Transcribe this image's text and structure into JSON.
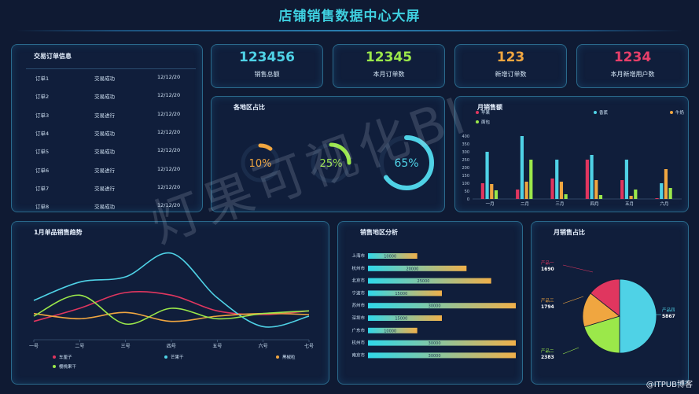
{
  "header": {
    "title": "店铺销售数据中心大屏"
  },
  "orders": {
    "title": "交易订单信息",
    "rows": [
      {
        "name": "订单1",
        "status": "交易成功",
        "date": "12/12/20"
      },
      {
        "name": "订单2",
        "status": "交易成功",
        "date": "12/12/20"
      },
      {
        "name": "订单3",
        "status": "交易进行",
        "date": "12/12/20"
      },
      {
        "name": "订单4",
        "status": "交易成功",
        "date": "12/12/20"
      },
      {
        "name": "订单5",
        "status": "交易成功",
        "date": "12/12/20"
      },
      {
        "name": "订单6",
        "status": "交易进行",
        "date": "12/12/20"
      },
      {
        "name": "订单7",
        "status": "交易进行",
        "date": "12/12/20"
      },
      {
        "name": "订单8",
        "status": "交易成功",
        "date": "12/12/20"
      }
    ]
  },
  "kpis": [
    {
      "value": "123456",
      "label": "销售总额",
      "color": "#4fd2e6"
    },
    {
      "value": "12345",
      "label": "本月订单数",
      "color": "#9be84a"
    },
    {
      "value": "123",
      "label": "新增订单数",
      "color": "#f0a640"
    },
    {
      "value": "1234",
      "label": "本月新增用户数",
      "color": "#e83f6a"
    }
  ],
  "region_ratio": {
    "title": "各地区占比",
    "rings": [
      {
        "label": "10%",
        "value": 10,
        "color": "#f0a640"
      },
      {
        "label": "25%",
        "value": 25,
        "color": "#9be84a"
      },
      {
        "label": "65%",
        "value": 65,
        "color": "#4fd2e6"
      }
    ]
  },
  "watermark": "灯果可视化BI",
  "footer": "@ITPUB博客",
  "chart_data": [
    {
      "type": "bar",
      "title": "月销售额",
      "categories": [
        "一月",
        "二月",
        "三月",
        "四月",
        "五月",
        "六月"
      ],
      "yticks": [
        0,
        50,
        100,
        150,
        200,
        250,
        300,
        350,
        400
      ],
      "ylim": [
        0,
        400
      ],
      "legend": "top",
      "series": [
        {
          "name": "苹果",
          "color": "#e0365f",
          "values": [
            100,
            60,
            130,
            250,
            120,
            5
          ]
        },
        {
          "name": "香蕉",
          "color": "#4fd2e6",
          "values": [
            300,
            400,
            250,
            280,
            250,
            100
          ]
        },
        {
          "name": "牛奶",
          "color": "#f0a640",
          "values": [
            95,
            110,
            110,
            120,
            20,
            190
          ]
        },
        {
          "name": "面包",
          "color": "#9be84a",
          "values": [
            55,
            250,
            30,
            25,
            60,
            70
          ]
        }
      ]
    },
    {
      "type": "line",
      "title": "1月单品销售趋势",
      "categories": [
        "一号",
        "二号",
        "三号",
        "四号",
        "五号",
        "六号",
        "七号"
      ],
      "legend": "bottom",
      "series": [
        {
          "name": "车厘子",
          "color": "#e0365f",
          "values": [
            35,
            60,
            90,
            85,
            55,
            48,
            55
          ]
        },
        {
          "name": "芒果干",
          "color": "#4fd2e6",
          "values": [
            75,
            110,
            120,
            165,
            80,
            25,
            45
          ]
        },
        {
          "name": "黑椒粒",
          "color": "#f0a640",
          "values": [
            50,
            40,
            52,
            35,
            45,
            50,
            48
          ]
        },
        {
          "name": "樱桃果干",
          "color": "#9be84a",
          "values": [
            45,
            85,
            30,
            60,
            40,
            50,
            55
          ]
        }
      ]
    },
    {
      "type": "bar",
      "title": "销售地区分析",
      "orientation": "horizontal",
      "categories": [
        "上海市",
        "杭州市",
        "北京市",
        "宁波市",
        "苏州市",
        "深圳市",
        "广东市",
        "杭州市",
        "南京市"
      ],
      "values": [
        10000,
        20000,
        25000,
        15000,
        30000,
        15000,
        10000,
        30000,
        30000
      ]
    },
    {
      "type": "pie",
      "title": "月销售占比",
      "slices": [
        {
          "name": "产品四",
          "value": 5867,
          "color": "#4fd2e6"
        },
        {
          "name": "产品二",
          "value": 2383,
          "color": "#9be84a"
        },
        {
          "name": "产品三",
          "value": 1794,
          "color": "#f0a640"
        },
        {
          "name": "产品一",
          "value": 1690,
          "color": "#e0365f"
        }
      ]
    }
  ]
}
